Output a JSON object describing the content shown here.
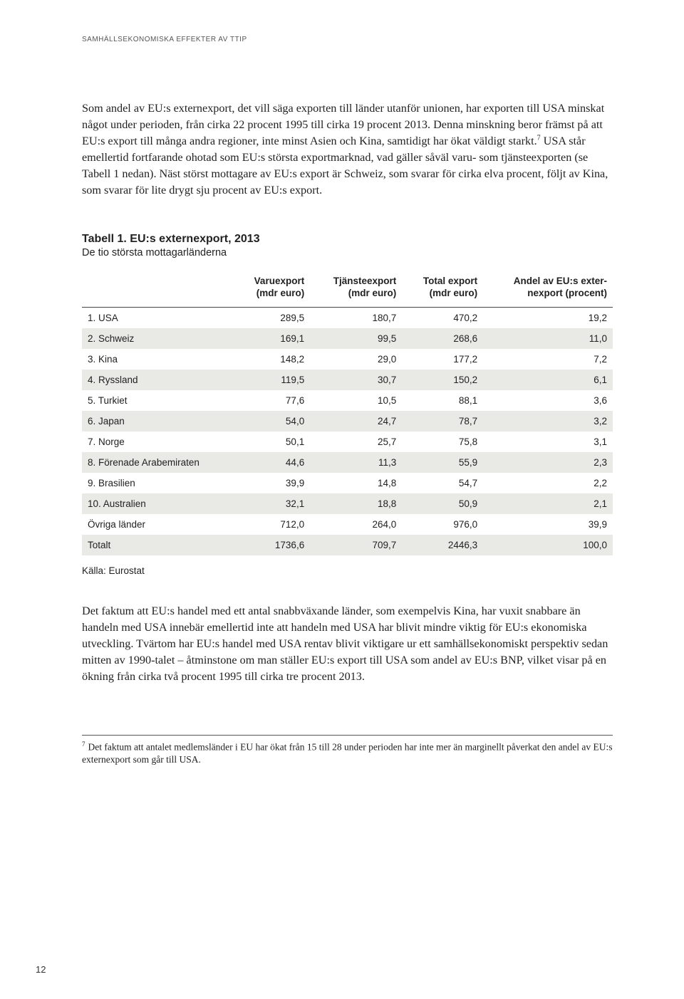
{
  "header": {
    "running": "SAMHÄLLSEKONOMISKA EFFEKTER AV TTIP"
  },
  "paragraphs": {
    "p1": "Som andel av EU:s externexport, det vill säga exporten till länder utanför unionen, har exporten till USA minskat något under perioden, från cirka 22 procent 1995 till cirka 19 procent 2013. Denna minskning beror främst på att EU:s export till många andra regioner, inte minst Asien och Kina, samtidigt har ökat väldigt starkt.",
    "p1_after_sup": " USA står emellertid fortfarande ohotad som EU:s största exportmarknad, vad gäller såväl varu- som tjänsteexporten (se Tabell 1 nedan). Näst störst mottagare av EU:s export är Schweiz, som svarar för cirka elva procent, följt av Kina, som svarar för lite drygt sju procent av EU:s export.",
    "p2": "Det faktum att EU:s handel med ett antal snabbväxande länder, som exempelvis Kina, har vuxit snabbare än handeln med USA innebär emellertid inte att handeln med USA har blivit mindre viktig för EU:s ekonomiska utveckling. Tvärtom har EU:s handel med USA rentav blivit viktigare ur ett samhällsekonomiskt perspektiv sedan mitten av 1990-talet – åtminstone om man ställer EU:s export till USA som andel av EU:s BNP, vilket visar på en ökning från cirka två procent 1995 till cirka tre procent 2013."
  },
  "table": {
    "title": "Tabell 1. EU:s externexport, 2013",
    "subtitle": "De tio största mottagarländerna",
    "columns": [
      "",
      "Varuexport (mdr euro)",
      "Tjänsteexport (mdr euro)",
      "Total export (mdr euro)",
      "Andel av EU:s externexport (procent)"
    ],
    "col_headers_line1": [
      "",
      "Varuexport",
      "Tjänsteexport",
      "Total export",
      "Andel av EU:s exter-"
    ],
    "col_headers_line2": [
      "",
      "(mdr euro)",
      "(mdr euro)",
      "(mdr euro)",
      "nexport (procent)"
    ],
    "rows": [
      [
        "1. USA",
        "289,5",
        "180,7",
        "470,2",
        "19,2"
      ],
      [
        "2. Schweiz",
        "169,1",
        "99,5",
        "268,6",
        "11,0"
      ],
      [
        "3. Kina",
        "148,2",
        "29,0",
        "177,2",
        "7,2"
      ],
      [
        "4. Ryssland",
        "119,5",
        "30,7",
        "150,2",
        "6,1"
      ],
      [
        "5. Turkiet",
        "77,6",
        "10,5",
        "88,1",
        "3,6"
      ],
      [
        "6. Japan",
        "54,0",
        "24,7",
        "78,7",
        "3,2"
      ],
      [
        "7. Norge",
        "50,1",
        "25,7",
        "75,8",
        "3,1"
      ],
      [
        "8. Förenade Arabemiraten",
        "44,6",
        "11,3",
        "55,9",
        "2,3"
      ],
      [
        "9. Brasilien",
        "39,9",
        "14,8",
        "54,7",
        "2,2"
      ],
      [
        "10. Australien",
        "32,1",
        "18,8",
        "50,9",
        "2,1"
      ],
      [
        "Övriga länder",
        "712,0",
        "264,0",
        "976,0",
        "39,9"
      ],
      [
        "Totalt",
        "1736,6",
        "709,7",
        "2446,3",
        "100,0"
      ]
    ],
    "stripe_color": "#e9eae5",
    "border_color": "#444444",
    "font_size": 13.5
  },
  "source": "Källa: Eurostat",
  "footnote": {
    "num": "7",
    "text": "Det faktum att antalet medlemsländer i EU har ökat från 15 till 28 under perioden har inte mer än marginellt påverkat den andel av EU:s externexport som går till USA."
  },
  "page_number": "12"
}
